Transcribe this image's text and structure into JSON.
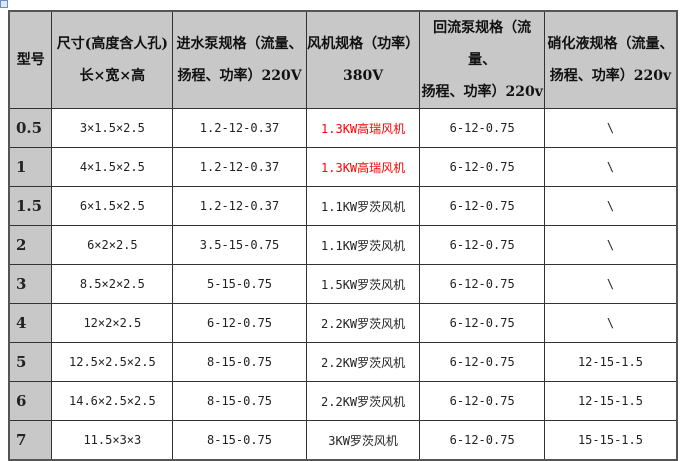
{
  "headers": [
    {
      "line1": "型号",
      "line2": ""
    },
    {
      "line1": "尺寸(高度含人孔)",
      "line2": "长×宽×高"
    },
    {
      "line1": "进水泵规格（流量、",
      "line2": "扬程、功率）220V"
    },
    {
      "line1": "风机规格（功率）",
      "line2": "380V"
    },
    {
      "line1": "回流泵规格（流量、",
      "line2": "扬程、功率）220v"
    },
    {
      "line1": "硝化液规格（流量、",
      "line2": "扬程、功率）220v"
    }
  ],
  "highlight_color": "#ff0000",
  "rows": [
    {
      "model": "0.5",
      "size": "3×1.5×2.5",
      "inlet_pump": "1.2-12-0.37",
      "fan": "1.3KW高瑞风机",
      "fan_highlight": true,
      "return_pump": "6-12-0.75",
      "nitrification": "\\"
    },
    {
      "model": "1",
      "size": "4×1.5×2.5",
      "inlet_pump": "1.2-12-0.37",
      "fan": "1.3KW高瑞风机",
      "fan_highlight": true,
      "return_pump": "6-12-0.75",
      "nitrification": "\\"
    },
    {
      "model": "1.5",
      "size": "6×1.5×2.5",
      "inlet_pump": "1.2-12-0.37",
      "fan": "1.1KW罗茨风机",
      "fan_highlight": false,
      "return_pump": "6-12-0.75",
      "nitrification": "\\"
    },
    {
      "model": "2",
      "size": "6×2×2.5",
      "inlet_pump": "3.5-15-0.75",
      "fan": "1.1KW罗茨风机",
      "fan_highlight": false,
      "return_pump": "6-12-0.75",
      "nitrification": "\\"
    },
    {
      "model": "3",
      "size": "8.5×2×2.5",
      "inlet_pump": "5-15-0.75",
      "fan": "1.5KW罗茨风机",
      "fan_highlight": false,
      "return_pump": "6-12-0.75",
      "nitrification": "\\"
    },
    {
      "model": "4",
      "size": "12×2×2.5",
      "inlet_pump": "6-12-0.75",
      "fan": "2.2KW罗茨风机",
      "fan_highlight": false,
      "return_pump": "6-12-0.75",
      "nitrification": "\\"
    },
    {
      "model": "5",
      "size": "12.5×2.5×2.5",
      "inlet_pump": "8-15-0.75",
      "fan": "2.2KW罗茨风机",
      "fan_highlight": false,
      "return_pump": "6-12-0.75",
      "nitrification": "12-15-1.5"
    },
    {
      "model": "6",
      "size": "14.6×2.5×2.5",
      "inlet_pump": "8-15-0.75",
      "fan": "2.2KW罗茨风机",
      "fan_highlight": false,
      "return_pump": "6-12-0.75",
      "nitrification": "12-15-1.5"
    },
    {
      "model": "7",
      "size": "11.5×3×3",
      "inlet_pump": "8-15-0.75",
      "fan": "3KW罗茨风机",
      "fan_highlight": false,
      "return_pump": "6-12-0.75",
      "nitrification": "15-15-1.5"
    }
  ]
}
